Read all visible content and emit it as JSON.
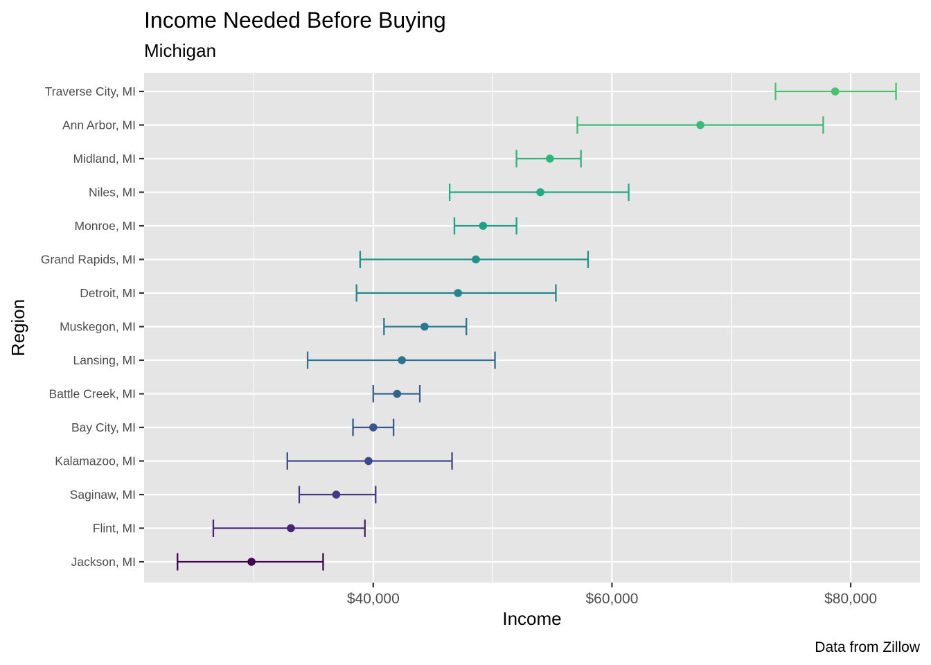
{
  "chart_data": {
    "type": "errorbar",
    "title": "Income Needed Before Buying",
    "subtitle": "Michigan",
    "xlabel": "Income",
    "ylabel": "Region",
    "caption": "Data from Zillow",
    "xlim": [
      20800,
      85800
    ],
    "x_ticks": [
      40000,
      60000,
      80000
    ],
    "x_tick_labels": [
      "$40,000",
      "$60,000",
      "$80,000"
    ],
    "grid": true,
    "legend": "none",
    "panel_background": "#e5e5e5",
    "categories": [
      "Traverse City, MI",
      "Ann Arbor, MI",
      "Midland, MI",
      "Niles, MI",
      "Monroe, MI",
      "Grand Rapids, MI",
      "Detroit, MI",
      "Muskegon, MI",
      "Lansing, MI",
      "Battle Creek, MI",
      "Bay City, MI",
      "Kalamazoo, MI",
      "Saginaw, MI",
      "Flint, MI",
      "Jackson, MI"
    ],
    "points": [
      {
        "region": "Traverse City, MI",
        "value": 78700,
        "low": 73700,
        "high": 83800,
        "color": "#4ac16d"
      },
      {
        "region": "Ann Arbor, MI",
        "value": 67400,
        "low": 57100,
        "high": 77700,
        "color": "#3bbb75"
      },
      {
        "region": "Midland, MI",
        "value": 54800,
        "low": 52000,
        "high": 57400,
        "color": "#2fb47c"
      },
      {
        "region": "Niles, MI",
        "value": 54000,
        "low": 46400,
        "high": 61400,
        "color": "#23a983"
      },
      {
        "region": "Monroe, MI",
        "value": 49200,
        "low": 46800,
        "high": 52000,
        "color": "#1fa188"
      },
      {
        "region": "Grand Rapids, MI",
        "value": 48600,
        "low": 38900,
        "high": 58000,
        "color": "#21918c"
      },
      {
        "region": "Detroit, MI",
        "value": 47100,
        "low": 38600,
        "high": 55300,
        "color": "#25838e"
      },
      {
        "region": "Muskegon, MI",
        "value": 44300,
        "low": 40900,
        "high": 47800,
        "color": "#29788e"
      },
      {
        "region": "Lansing, MI",
        "value": 42400,
        "low": 34500,
        "high": 50200,
        "color": "#2c728e"
      },
      {
        "region": "Battle Creek, MI",
        "value": 42000,
        "low": 40000,
        "high": 43900,
        "color": "#33638d"
      },
      {
        "region": "Bay City, MI",
        "value": 40000,
        "low": 38300,
        "high": 41700,
        "color": "#38588c"
      },
      {
        "region": "Kalamazoo, MI",
        "value": 39600,
        "low": 32800,
        "high": 46600,
        "color": "#3e4989"
      },
      {
        "region": "Saginaw, MI",
        "value": 36900,
        "low": 33800,
        "high": 40200,
        "color": "#443983"
      },
      {
        "region": "Flint, MI",
        "value": 33100,
        "low": 26600,
        "high": 39300,
        "color": "#482475"
      },
      {
        "region": "Jackson, MI",
        "value": 29800,
        "low": 23600,
        "high": 35800,
        "color": "#440154"
      }
    ]
  }
}
